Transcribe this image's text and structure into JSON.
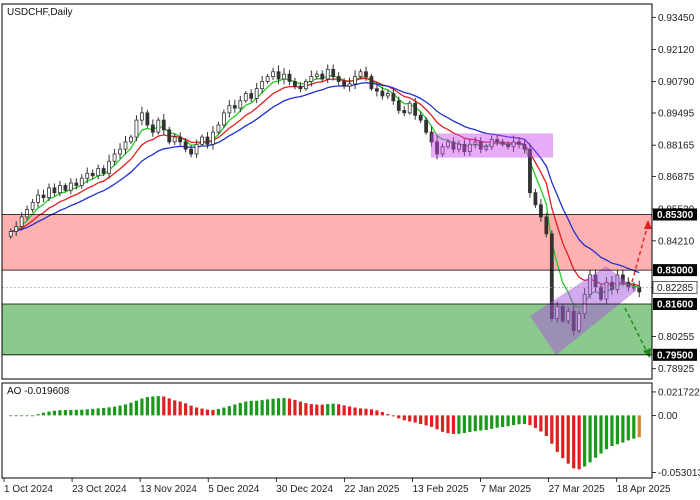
{
  "chart_data": {
    "type": "candlestick",
    "title": "USDCHF,Daily",
    "x_ticks": [
      "1 Oct 2024",
      "23 Oct 2024",
      "13 Nov 2024",
      "5 Dec 2024",
      "30 Dec 2024",
      "22 Jan 2025",
      "13 Feb 2025",
      "7 Mar 2025",
      "27 Mar 2025",
      "18 Apr 2025"
    ],
    "price_axis": {
      "range": [
        0.785,
        0.94
      ],
      "ticks": [
        "0.93450",
        "0.92120",
        "0.90790",
        "0.89495",
        "0.88165",
        "0.86875",
        "0.85530",
        "0.84210",
        "0.82285",
        "0.80255",
        "0.78925"
      ],
      "tick_values": [
        0.9345,
        0.9212,
        0.9079,
        0.89495,
        0.88165,
        0.86875,
        0.8553,
        0.8421,
        0.82285,
        0.80255,
        0.78925
      ]
    },
    "levels": [
      {
        "label": "0.85300",
        "value": 0.853,
        "color": "#000000"
      },
      {
        "label": "0.83000",
        "value": 0.83,
        "color": "#000000"
      },
      {
        "label": "0.81600",
        "value": 0.816,
        "color": "#000000"
      },
      {
        "label": "0.79500",
        "value": 0.795,
        "color": "#000000"
      }
    ],
    "zones": [
      {
        "name": "resistance",
        "from": 0.83,
        "to": 0.853,
        "color": "#ffb0b0"
      },
      {
        "name": "support",
        "from": 0.795,
        "to": 0.816,
        "color": "#8cc98c"
      }
    ],
    "current_price": {
      "label": "0.82285",
      "value": 0.82285
    },
    "moving_average_colors": {
      "fast": "#22cc22",
      "mid": "#e02020",
      "slow": "#2030d0"
    },
    "close_series": [
      0.846,
      0.848,
      0.852,
      0.855,
      0.858,
      0.861,
      0.86,
      0.864,
      0.862,
      0.865,
      0.863,
      0.866,
      0.865,
      0.868,
      0.87,
      0.869,
      0.872,
      0.87,
      0.875,
      0.878,
      0.88,
      0.883,
      0.885,
      0.892,
      0.895,
      0.89,
      0.887,
      0.892,
      0.888,
      0.883,
      0.885,
      0.883,
      0.88,
      0.878,
      0.882,
      0.885,
      0.882,
      0.887,
      0.89,
      0.895,
      0.898,
      0.897,
      0.9,
      0.903,
      0.901,
      0.905,
      0.908,
      0.91,
      0.912,
      0.909,
      0.911,
      0.908,
      0.906,
      0.905,
      0.908,
      0.91,
      0.911,
      0.909,
      0.913,
      0.91,
      0.908,
      0.906,
      0.907,
      0.91,
      0.912,
      0.91,
      0.905,
      0.904,
      0.902,
      0.903,
      0.9,
      0.896,
      0.895,
      0.899,
      0.894,
      0.892,
      0.887,
      0.883,
      0.878,
      0.881,
      0.883,
      0.88,
      0.882,
      0.879,
      0.882,
      0.883,
      0.88,
      0.881,
      0.884,
      0.883,
      0.882,
      0.881,
      0.883,
      0.882,
      0.88,
      0.862,
      0.857,
      0.852,
      0.845,
      0.81,
      0.815,
      0.809,
      0.813,
      0.805,
      0.812,
      0.82,
      0.828,
      0.823,
      0.818,
      0.825,
      0.822,
      0.828,
      0.825,
      0.823,
      0.823,
      0.821
    ],
    "oscillator": {
      "name": "AO",
      "label": "AO -0.019608",
      "ticks": [
        "0.021722",
        "0.00",
        "-0.053013"
      ],
      "tick_values": [
        0.021722,
        0.0,
        -0.053013
      ],
      "range": [
        -0.058,
        0.03
      ]
    }
  }
}
